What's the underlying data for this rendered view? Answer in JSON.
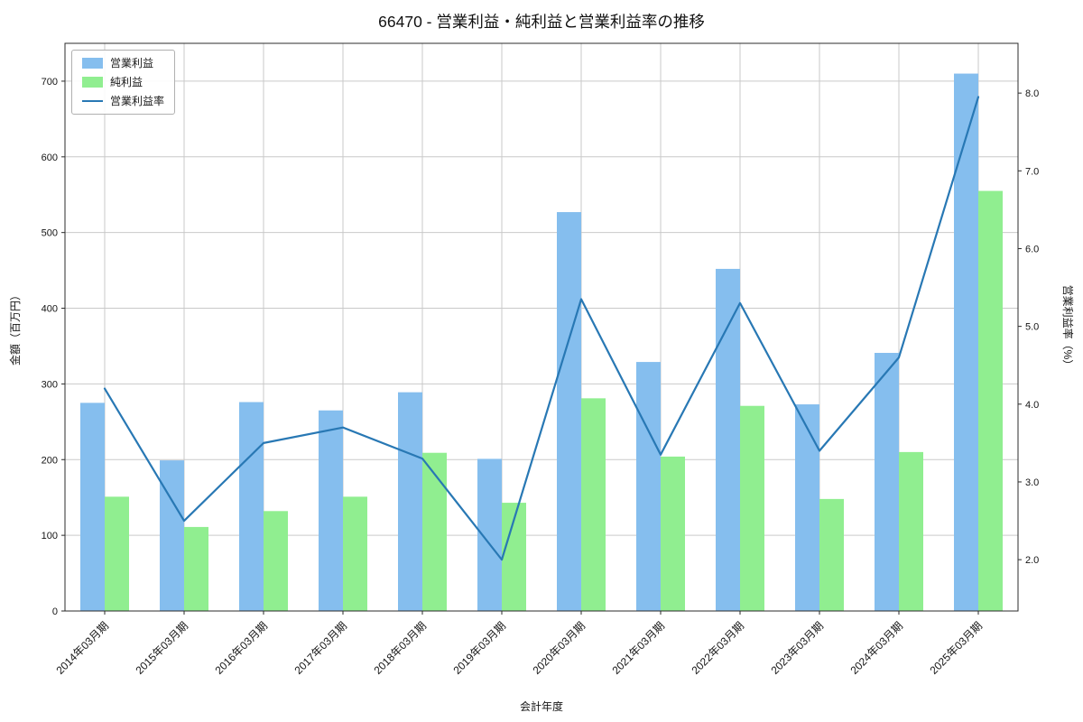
{
  "chart_data": {
    "type": "bar",
    "subtype": "grouped-bars-with-line-overlay",
    "title": "66470 - 営業利益・純利益と営業利益率の推移",
    "xlabel": "会計年度",
    "ylabel_left": "金額（百万円）",
    "ylabel_right": "営業利益率（%）",
    "categories": [
      "2014年03月期",
      "2015年03月期",
      "2016年03月期",
      "2017年03月期",
      "2018年03月期",
      "2019年03月期",
      "2020年03月期",
      "2021年03月期",
      "2022年03月期",
      "2023年03月期",
      "2024年03月期",
      "2025年03月期"
    ],
    "series": [
      {
        "name": "営業利益",
        "type": "bar",
        "axis": "left",
        "color": "#85BEEE",
        "values": [
          275,
          199,
          276,
          265,
          289,
          201,
          527,
          329,
          452,
          273,
          341,
          710
        ]
      },
      {
        "name": "純利益",
        "type": "bar",
        "axis": "left",
        "color": "#90EE90",
        "values": [
          151,
          111,
          132,
          151,
          209,
          143,
          281,
          204,
          271,
          148,
          210,
          555
        ]
      },
      {
        "name": "営業利益率",
        "type": "line",
        "axis": "right",
        "color": "#2878B4",
        "values": [
          4.2,
          2.5,
          3.5,
          3.7,
          3.3,
          2.0,
          5.35,
          3.35,
          5.3,
          3.4,
          4.6,
          7.95
        ]
      }
    ],
    "ylim_left": [
      0,
      750
    ],
    "yticks_left": [
      0,
      100,
      200,
      300,
      400,
      500,
      600,
      700
    ],
    "ylim_right": [
      1.34,
      8.64
    ],
    "yticks_right": [
      2.0,
      3.0,
      4.0,
      5.0,
      6.0,
      7.0,
      8.0
    ],
    "grid": true,
    "legend_position": "upper left",
    "colors": {
      "grid": "#c9c9c9",
      "spine": "#2b2b2b",
      "tick_text": "#141414"
    }
  }
}
